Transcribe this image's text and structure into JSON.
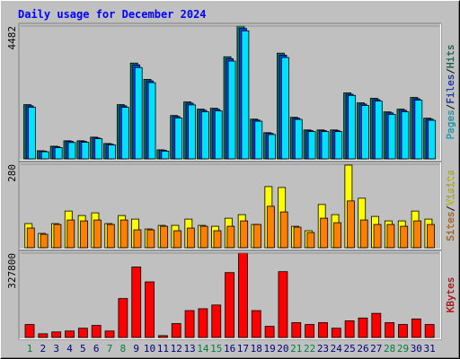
{
  "chart_data": {
    "type": "bar",
    "title": "Daily usage for December 2024",
    "title_color": "#0000ff",
    "categories": [
      "1",
      "2",
      "3",
      "4",
      "5",
      "6",
      "7",
      "8",
      "9",
      "10",
      "11",
      "12",
      "13",
      "14",
      "15",
      "16",
      "17",
      "18",
      "19",
      "20",
      "21",
      "22",
      "23",
      "24",
      "25",
      "26",
      "27",
      "28",
      "29",
      "30",
      "31"
    ],
    "category_colors": [
      "#008040",
      "#00007f",
      "#00007f",
      "#00007f",
      "#00007f",
      "#00007f",
      "#008040",
      "#008040",
      "#00007f",
      "#00007f",
      "#00007f",
      "#00007f",
      "#00007f",
      "#008040",
      "#008040",
      "#00007f",
      "#00007f",
      "#00007f",
      "#00007f",
      "#00007f",
      "#008040",
      "#008040",
      "#00007f",
      "#00007f",
      "#00007f",
      "#00007f",
      "#00007f",
      "#008040",
      "#008040",
      "#00007f",
      "#00007f"
    ],
    "legend_separator": "/",
    "panels": [
      {
        "ylim": [
          0,
          4482
        ],
        "yticks": [
          4482
        ],
        "series": [
          {
            "name": "Hits",
            "color": "#00805c",
            "values": [
              1829,
              274,
              427,
              610,
              610,
              732,
              518,
              1829,
              3232,
              2683,
              305,
              1463,
              1921,
              1677,
              1707,
              3445,
              4482,
              1341,
              884,
              3567,
              1402,
              976,
              976,
              976,
              2226,
              1890,
              2043,
              1585,
              1677,
              2073,
              1372
            ]
          },
          {
            "name": "Files",
            "color": "#0040ff",
            "values": [
              1790,
              260,
              410,
              590,
              590,
              710,
              500,
              1790,
              3170,
              2630,
              290,
              1430,
              1880,
              1640,
              1670,
              3380,
              4400,
              1310,
              860,
              3500,
              1370,
              950,
              950,
              950,
              2180,
              1850,
              2000,
              1550,
              1640,
              2030,
              1340
            ]
          },
          {
            "name": "Pages",
            "color": "#00e0ff",
            "values": [
              1740,
              240,
              380,
              550,
              560,
              680,
              470,
              1740,
              3080,
              2570,
              260,
              1380,
              1820,
              1590,
              1620,
              3300,
              4320,
              1270,
              820,
              3420,
              1330,
              920,
              920,
              920,
              2140,
              1800,
              1950,
              1500,
              1590,
              1980,
              1300
            ]
          }
        ]
      },
      {
        "ylim": [
          0,
          280
        ],
        "yticks": [
          280
        ],
        "series": [
          {
            "name": "Visits",
            "color": "#ffff00",
            "values": [
              81,
              48,
              81,
              123,
              108,
              117,
              81,
              108,
              96,
              63,
              75,
              75,
              96,
              75,
              72,
              99,
              111,
              78,
              205,
              202,
              72,
              57,
              145,
              111,
              277,
              166,
              105,
              90,
              90,
              123,
              96
            ]
          },
          {
            "name": "Sites",
            "color": "#ff8000",
            "values": [
              66,
              45,
              78,
              93,
              90,
              93,
              78,
              93,
              60,
              60,
              72,
              57,
              66,
              72,
              57,
              72,
              90,
              78,
              139,
              120,
              69,
              51,
              99,
              84,
              157,
              93,
              78,
              78,
              72,
              90,
              78
            ]
          }
        ]
      },
      {
        "ylim": [
          0,
          327800
        ],
        "yticks": [
          327800
        ],
        "series": [
          {
            "name": "KBytes",
            "color": "#ff0000",
            "values": [
              50400,
              14400,
              21600,
              25200,
              36000,
              46800,
              25200,
              151300,
              273800,
              216100,
              7200,
              54000,
              104500,
              111700,
              126100,
              252100,
              327800,
              104500,
              43200,
              255700,
              57600,
              50400,
              57600,
              36000,
              64800,
              75600,
              93700,
              57600,
              50400,
              72000,
              50400
            ]
          }
        ]
      }
    ]
  }
}
